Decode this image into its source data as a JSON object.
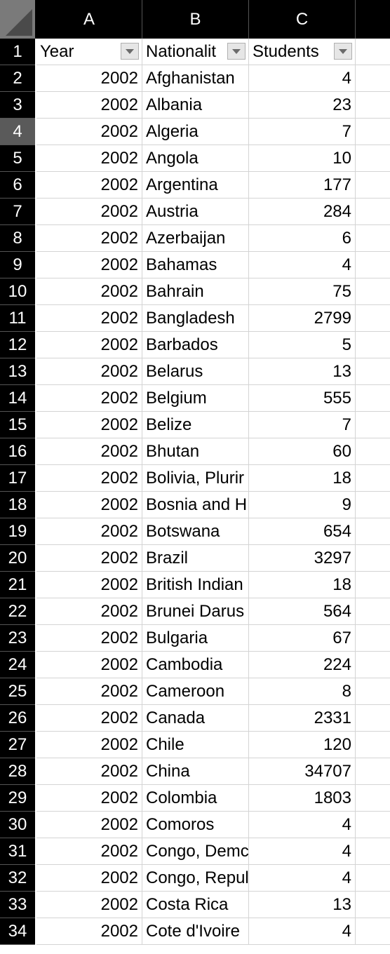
{
  "columns": [
    "A",
    "B",
    "C"
  ],
  "header_row": {
    "num": "1",
    "a": "Year",
    "b": "Nationalit",
    "c": "Students"
  },
  "selected_row": "4",
  "rows": [
    {
      "num": "2",
      "year": "2002",
      "nationality": "Afghanistan",
      "students": "4"
    },
    {
      "num": "3",
      "year": "2002",
      "nationality": "Albania",
      "students": "23"
    },
    {
      "num": "4",
      "year": "2002",
      "nationality": "Algeria",
      "students": "7"
    },
    {
      "num": "5",
      "year": "2002",
      "nationality": "Angola",
      "students": "10"
    },
    {
      "num": "6",
      "year": "2002",
      "nationality": "Argentina",
      "students": "177"
    },
    {
      "num": "7",
      "year": "2002",
      "nationality": "Austria",
      "students": "284"
    },
    {
      "num": "8",
      "year": "2002",
      "nationality": "Azerbaijan",
      "students": "6"
    },
    {
      "num": "9",
      "year": "2002",
      "nationality": "Bahamas",
      "students": "4"
    },
    {
      "num": "10",
      "year": "2002",
      "nationality": "Bahrain",
      "students": "75"
    },
    {
      "num": "11",
      "year": "2002",
      "nationality": "Bangladesh",
      "students": "2799"
    },
    {
      "num": "12",
      "year": "2002",
      "nationality": "Barbados",
      "students": "5"
    },
    {
      "num": "13",
      "year": "2002",
      "nationality": "Belarus",
      "students": "13"
    },
    {
      "num": "14",
      "year": "2002",
      "nationality": "Belgium",
      "students": "555"
    },
    {
      "num": "15",
      "year": "2002",
      "nationality": "Belize",
      "students": "7"
    },
    {
      "num": "16",
      "year": "2002",
      "nationality": "Bhutan",
      "students": "60"
    },
    {
      "num": "17",
      "year": "2002",
      "nationality": "Bolivia, Plurir",
      "students": "18"
    },
    {
      "num": "18",
      "year": "2002",
      "nationality": "Bosnia and H",
      "students": "9"
    },
    {
      "num": "19",
      "year": "2002",
      "nationality": "Botswana",
      "students": "654"
    },
    {
      "num": "20",
      "year": "2002",
      "nationality": "Brazil",
      "students": "3297"
    },
    {
      "num": "21",
      "year": "2002",
      "nationality": "British Indian",
      "students": "18"
    },
    {
      "num": "22",
      "year": "2002",
      "nationality": "Brunei Darus",
      "students": "564"
    },
    {
      "num": "23",
      "year": "2002",
      "nationality": "Bulgaria",
      "students": "67"
    },
    {
      "num": "24",
      "year": "2002",
      "nationality": "Cambodia",
      "students": "224"
    },
    {
      "num": "25",
      "year": "2002",
      "nationality": "Cameroon",
      "students": "8"
    },
    {
      "num": "26",
      "year": "2002",
      "nationality": "Canada",
      "students": "2331"
    },
    {
      "num": "27",
      "year": "2002",
      "nationality": "Chile",
      "students": "120"
    },
    {
      "num": "28",
      "year": "2002",
      "nationality": "China",
      "students": "34707"
    },
    {
      "num": "29",
      "year": "2002",
      "nationality": "Colombia",
      "students": "1803"
    },
    {
      "num": "30",
      "year": "2002",
      "nationality": "Comoros",
      "students": "4"
    },
    {
      "num": "31",
      "year": "2002",
      "nationality": "Congo, Demc",
      "students": "4"
    },
    {
      "num": "32",
      "year": "2002",
      "nationality": "Congo, Repul",
      "students": "4"
    },
    {
      "num": "33",
      "year": "2002",
      "nationality": "Costa Rica",
      "students": "13"
    },
    {
      "num": "34",
      "year": "2002",
      "nationality": "Cote d'Ivoire",
      "students": "4"
    }
  ]
}
